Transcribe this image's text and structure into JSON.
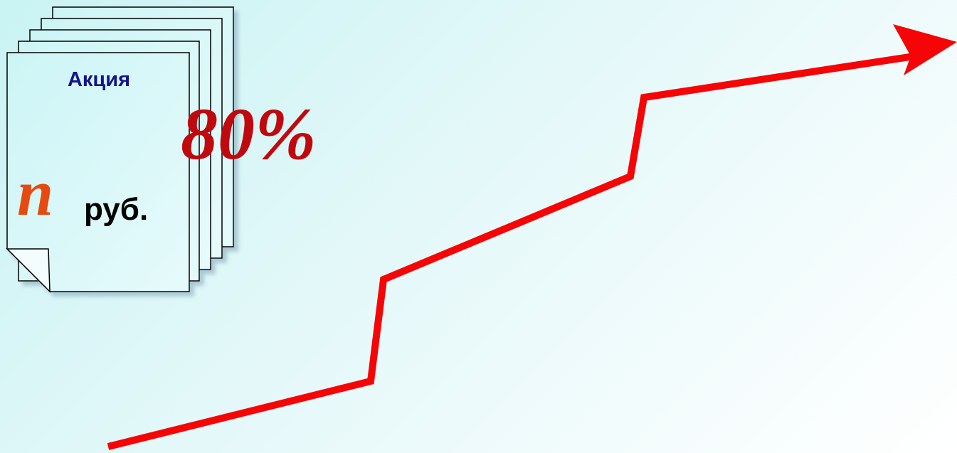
{
  "document": {
    "title": "Акция",
    "variable": "n",
    "unit": "руб."
  },
  "percentage": "80%",
  "colors": {
    "background_start": "#c9f3f4",
    "background_end": "#ffffff",
    "document_fill": "#d7f7f8",
    "title_text": "#13138a",
    "variable_text": "#e64a10",
    "percentage_text": "#c0090e",
    "growth_arrow": "#f50505"
  }
}
